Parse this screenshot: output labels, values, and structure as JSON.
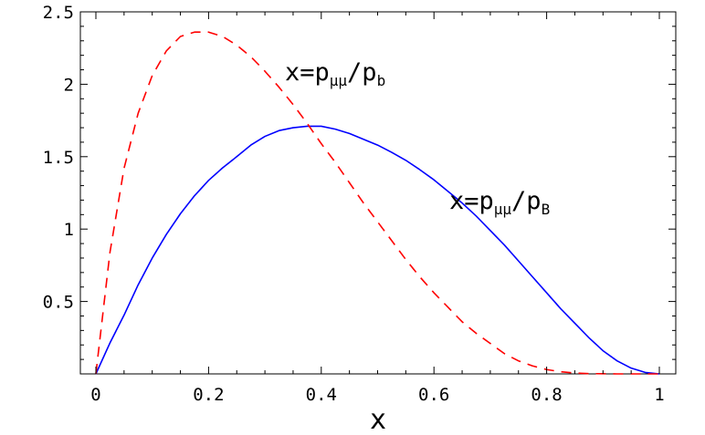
{
  "chart_data": {
    "type": "line",
    "title": "",
    "xlabel": "x",
    "ylabel": "",
    "xlim": [
      0,
      1
    ],
    "ylim": [
      0,
      2.5
    ],
    "xticks": [
      0,
      0.2,
      0.4,
      0.6,
      0.8,
      1
    ],
    "yticks": [
      0.5,
      1,
      1.5,
      2,
      2.5
    ],
    "xtick_labels": [
      "0",
      "0.2",
      "0.4",
      "0.6",
      "0.8",
      "1"
    ],
    "ytick_labels": [
      "0.5",
      "1",
      "1.5",
      "2",
      "2.5"
    ],
    "grid": false,
    "series": [
      {
        "color": "#0000ff",
        "dash": "solid",
        "x": [
          0,
          0.025,
          0.05,
          0.075,
          0.1,
          0.125,
          0.15,
          0.175,
          0.2,
          0.225,
          0.25,
          0.275,
          0.3,
          0.325,
          0.35,
          0.375,
          0.4,
          0.425,
          0.45,
          0.475,
          0.5,
          0.525,
          0.55,
          0.575,
          0.6,
          0.625,
          0.65,
          0.675,
          0.7,
          0.725,
          0.75,
          0.775,
          0.8,
          0.825,
          0.85,
          0.875,
          0.9,
          0.925,
          0.95,
          0.975,
          1
        ],
        "y": [
          0,
          0.214,
          0.406,
          0.615,
          0.8,
          0.963,
          1.106,
          1.23,
          1.336,
          1.423,
          1.5,
          1.58,
          1.64,
          1.68,
          1.7,
          1.71,
          1.71,
          1.69,
          1.66,
          1.62,
          1.58,
          1.53,
          1.475,
          1.41,
          1.34,
          1.26,
          1.18,
          1.09,
          0.99,
          0.89,
          0.78,
          0.67,
          0.56,
          0.45,
          0.35,
          0.25,
          0.16,
          0.09,
          0.04,
          0.01,
          0
        ]
      },
      {
        "color": "#ff0000",
        "dash": "dashed",
        "x": [
          0,
          0.025,
          0.05,
          0.075,
          0.1,
          0.125,
          0.15,
          0.175,
          0.2,
          0.225,
          0.25,
          0.275,
          0.3,
          0.325,
          0.35,
          0.375,
          0.4,
          0.425,
          0.45,
          0.475,
          0.5,
          0.525,
          0.55,
          0.575,
          0.6,
          0.625,
          0.65,
          0.675,
          0.7,
          0.725,
          0.75,
          0.775,
          0.8,
          0.825,
          0.85,
          0.875,
          0.9,
          0.925,
          0.95,
          0.975,
          1
        ],
        "y": [
          0,
          0.84,
          1.42,
          1.8,
          2.06,
          2.23,
          2.33,
          2.36,
          2.36,
          2.33,
          2.27,
          2.19,
          2.09,
          1.98,
          1.86,
          1.73,
          1.59,
          1.46,
          1.32,
          1.18,
          1.05,
          0.92,
          0.79,
          0.67,
          0.56,
          0.46,
          0.36,
          0.28,
          0.21,
          0.14,
          0.09,
          0.055,
          0.03,
          0.015,
          0.006,
          0.002,
          0.001,
          0,
          0,
          0,
          0
        ]
      }
    ],
    "annotations": [
      {
        "text": "x=p",
        "sub1": "μμ",
        "mid": "/p",
        "sub2": "b",
        "x": 0.34,
        "y": 2.08
      },
      {
        "text": "x=p",
        "sub1": "μμ",
        "mid": "/p",
        "sub2": "B",
        "x": 0.63,
        "y": 1.16
      }
    ]
  }
}
